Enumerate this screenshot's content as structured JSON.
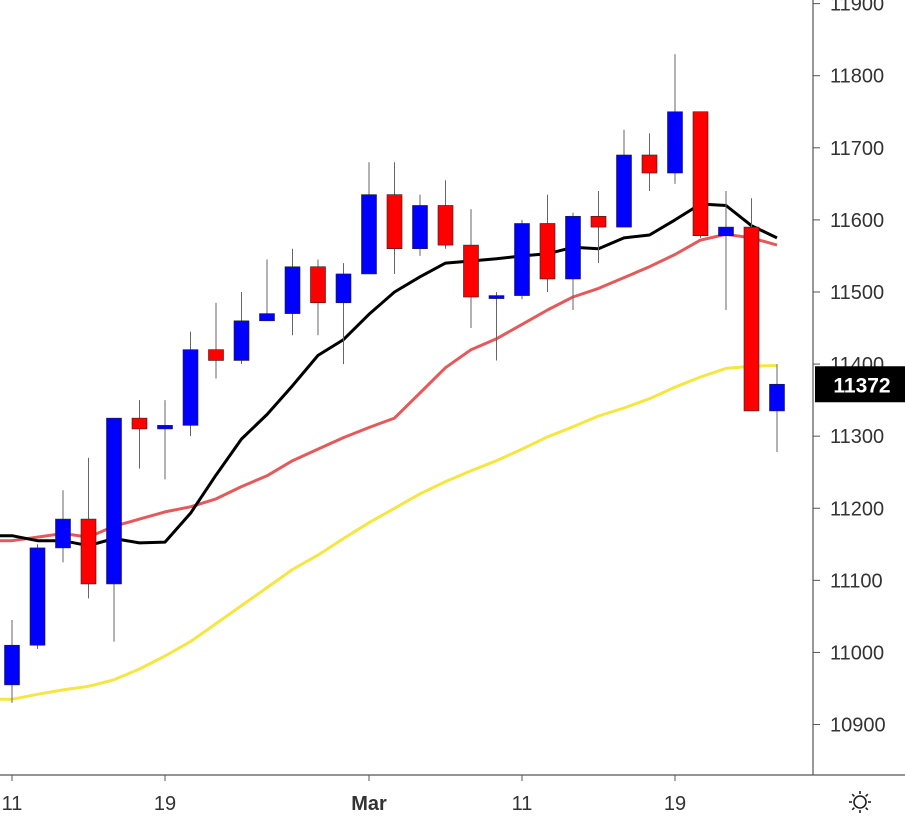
{
  "chart_data": {
    "type": "candlestick",
    "y_axis": {
      "ticks": [
        10900,
        11000,
        11100,
        11200,
        11300,
        11400,
        11500,
        11600,
        11700,
        11800,
        11900
      ],
      "tick_labels": [
        "10900",
        "11000",
        "11100",
        "11200",
        "11300",
        "11400",
        "11500",
        "11600",
        "11700",
        "11800",
        "11900"
      ],
      "range": [
        10830,
        11905
      ]
    },
    "x_axis": {
      "ticks": [
        {
          "label": "11",
          "index": 0
        },
        {
          "label": "19",
          "index": 6
        },
        {
          "label": "Mar",
          "index": 14
        },
        {
          "label": "11",
          "index": 20
        },
        {
          "label": "19",
          "index": 26
        }
      ]
    },
    "last_price": {
      "label": "11372",
      "value": 11372
    },
    "candles": [
      {
        "o": 10955,
        "h": 11045,
        "l": 10930,
        "c": 11010
      },
      {
        "o": 11010,
        "h": 11150,
        "l": 11005,
        "c": 11145
      },
      {
        "o": 11145,
        "h": 11225,
        "l": 11125,
        "c": 11185
      },
      {
        "o": 11185,
        "h": 11270,
        "l": 11075,
        "c": 11095
      },
      {
        "o": 11095,
        "h": 11325,
        "l": 11015,
        "c": 11325
      },
      {
        "o": 11325,
        "h": 11350,
        "l": 11255,
        "c": 11310
      },
      {
        "o": 11310,
        "h": 11350,
        "l": 11240,
        "c": 11315
      },
      {
        "o": 11315,
        "h": 11445,
        "l": 11300,
        "c": 11420
      },
      {
        "o": 11420,
        "h": 11485,
        "l": 11380,
        "c": 11405
      },
      {
        "o": 11405,
        "h": 11500,
        "l": 11400,
        "c": 11460
      },
      {
        "o": 11460,
        "h": 11545,
        "l": 11460,
        "c": 11470
      },
      {
        "o": 11470,
        "h": 11560,
        "l": 11440,
        "c": 11535
      },
      {
        "o": 11535,
        "h": 11545,
        "l": 11440,
        "c": 11485
      },
      {
        "o": 11485,
        "h": 11540,
        "l": 11400,
        "c": 11525
      },
      {
        "o": 11525,
        "h": 11680,
        "l": 11525,
        "c": 11635
      },
      {
        "o": 11635,
        "h": 11680,
        "l": 11525,
        "c": 11560
      },
      {
        "o": 11560,
        "h": 11635,
        "l": 11550,
        "c": 11620
      },
      {
        "o": 11620,
        "h": 11655,
        "l": 11560,
        "c": 11565
      },
      {
        "o": 11565,
        "h": 11615,
        "l": 11450,
        "c": 11493
      },
      {
        "o": 11493,
        "h": 11500,
        "l": 11405,
        "c": 11495
      },
      {
        "o": 11495,
        "h": 11600,
        "l": 11490,
        "c": 11595
      },
      {
        "o": 11595,
        "h": 11635,
        "l": 11500,
        "c": 11518
      },
      {
        "o": 11518,
        "h": 11610,
        "l": 11475,
        "c": 11605
      },
      {
        "o": 11605,
        "h": 11640,
        "l": 11540,
        "c": 11590
      },
      {
        "o": 11590,
        "h": 11725,
        "l": 11590,
        "c": 11690
      },
      {
        "o": 11690,
        "h": 11720,
        "l": 11640,
        "c": 11665
      },
      {
        "o": 11665,
        "h": 11830,
        "l": 11650,
        "c": 11750
      },
      {
        "o": 11750,
        "h": 11750,
        "l": 11575,
        "c": 11578
      },
      {
        "o": 11578,
        "h": 11640,
        "l": 11475,
        "c": 11590
      },
      {
        "o": 11590,
        "h": 11630,
        "l": 11335,
        "c": 11335
      },
      {
        "o": 11335,
        "h": 11400,
        "l": 11278,
        "c": 11372
      }
    ],
    "series": [
      {
        "color": "#000000",
        "values": [
          11162,
          11155,
          11155,
          11148,
          11158,
          11152,
          11153,
          11193,
          11246,
          11296,
          11330,
          11370,
          11412,
          11434,
          11469,
          11500,
          11521,
          11540,
          11543,
          11546,
          11550,
          11553,
          11562,
          11560,
          11575,
          11579,
          11600,
          11622,
          11620,
          11592,
          11575
        ]
      },
      {
        "color": "#e45a5a",
        "values": [
          11155,
          11160,
          11165,
          11160,
          11175,
          11185,
          11195,
          11202,
          11213,
          11230,
          11245,
          11266,
          11282,
          11298,
          11312,
          11325,
          11360,
          11395,
          11420,
          11435,
          11455,
          11475,
          11493,
          11505,
          11520,
          11535,
          11552,
          11572,
          11580,
          11575,
          11565
        ]
      },
      {
        "color": "#f5e642",
        "values": [
          10935,
          10942,
          10948,
          10953,
          10962,
          10977,
          10995,
          11015,
          11040,
          11065,
          11090,
          11115,
          11135,
          11158,
          11180,
          11200,
          11220,
          11237,
          11252,
          11266,
          11282,
          11299,
          11313,
          11328,
          11339,
          11352,
          11368,
          11382,
          11394,
          11397,
          11398
        ]
      }
    ],
    "colors": {
      "up": "#0000ff",
      "down": "#ff0000",
      "wick": "#666666",
      "axis": "#555555",
      "tick_text": "#333333",
      "label_bg": "#000000",
      "label_text": "#ffffff"
    }
  },
  "toolbar": {
    "settings_icon": "gear-icon"
  }
}
